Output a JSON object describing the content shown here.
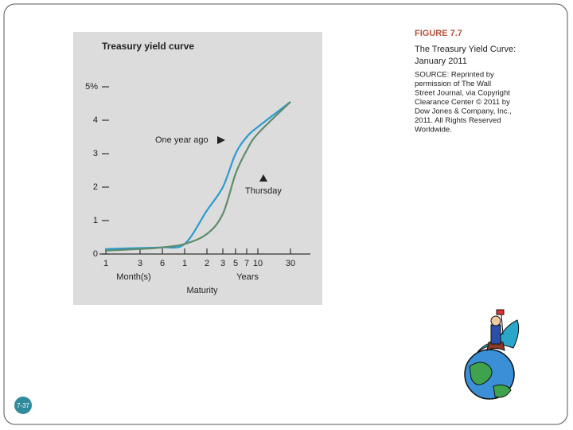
{
  "chart_data": {
    "type": "line",
    "title": "Treasury yield curve",
    "categories": [
      "1",
      "3",
      "6",
      "1",
      "2",
      "3",
      "5",
      "7",
      "10",
      "30"
    ],
    "group_labels": [
      "Month(s)",
      "Years"
    ],
    "x_label": "Maturity",
    "series": [
      {
        "name": "One year ago",
        "color": "#2b9bd0",
        "values": [
          0.15,
          0.18,
          0.2,
          0.3,
          1.3,
          2.0,
          3.0,
          3.5,
          3.8,
          4.55
        ]
      },
      {
        "name": "Thursday",
        "color": "#5f8c6c",
        "values": [
          0.1,
          0.15,
          0.2,
          0.3,
          0.6,
          1.2,
          2.4,
          3.1,
          3.6,
          4.55
        ]
      }
    ],
    "ylim": [
      0,
      5
    ],
    "yticks": [
      0,
      1,
      2,
      3,
      4,
      {
        "value": 5,
        "label": "5%"
      }
    ]
  },
  "caption": {
    "figure": "FIGURE 7.7",
    "title_lines": [
      "The Treasury Yield Curve:",
      "January 2011"
    ],
    "source_lines": [
      "SOURCE: Reprinted by",
      "permission of The Wall",
      "Street Journal, via Copyright",
      "Clearance Center © 2011 by",
      "Dow Jones & Company, Inc.,",
      "2011. All Rights Reserved",
      "Worldwide."
    ]
  },
  "slide_number": "7-37"
}
